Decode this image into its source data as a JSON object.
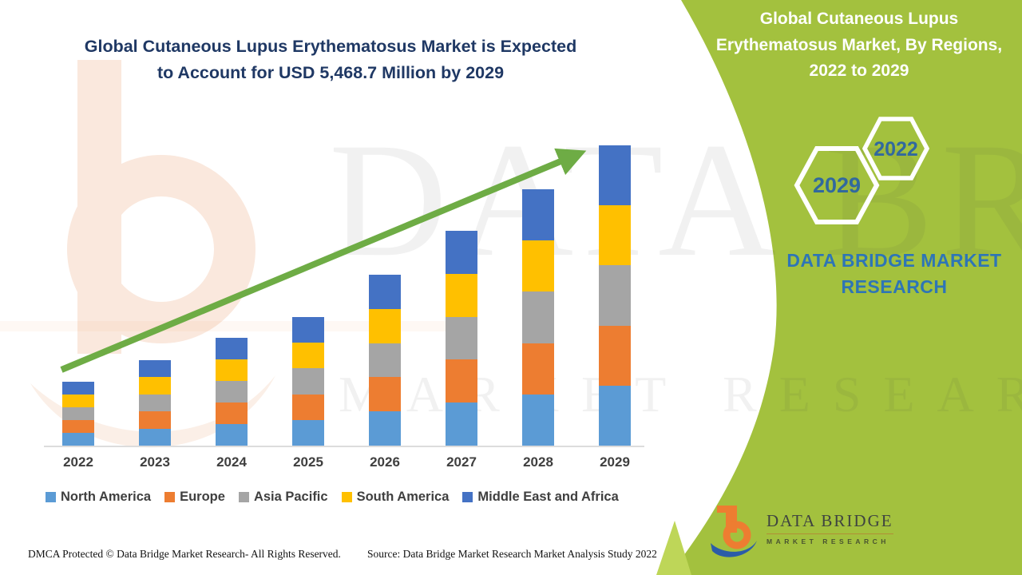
{
  "header": {
    "main_title": "Global Cutaneous Lupus Erythematosus Market is Expected\nto Account for USD 5,468.7 Million by 2029"
  },
  "side_panel": {
    "title": "Global Cutaneous Lupus\nErythematosus Market, By Regions,\n2022 to 2029",
    "hexagon_year_large": "2029",
    "hexagon_year_small": "2022",
    "brand_text": "DATA BRIDGE MARKET\nRESEARCH",
    "background_color": "#A3C13E",
    "accent_color": "#BED658"
  },
  "watermark": {
    "line1": "DATA BRIDGE",
    "line2": "MARKET RESEARCH"
  },
  "chart_data": {
    "type": "bar",
    "stacked": true,
    "title": "Global Cutaneous Lupus Erythematosus Market, By Regions, 2022 to 2029",
    "unit": "USD Million",
    "stated_value": "USD 5,468.7 Million by 2029",
    "categories": [
      "2022",
      "2023",
      "2024",
      "2025",
      "2026",
      "2027",
      "2028",
      "2029"
    ],
    "series": [
      {
        "name": "North America",
        "color": "#5B9BD5",
        "values": [
          232.7,
          311.2,
          392.6,
          468.4,
          622.4,
          782.4,
          933.7,
          1093.7
        ]
      },
      {
        "name": "Europe",
        "color": "#ED7D31",
        "values": [
          232.7,
          311.2,
          392.6,
          468.4,
          622.4,
          782.4,
          933.7,
          1093.7
        ]
      },
      {
        "name": "Asia Pacific",
        "color": "#A5A5A5",
        "values": [
          232.7,
          311.2,
          392.6,
          468.4,
          622.4,
          782.4,
          933.7,
          1093.7
        ]
      },
      {
        "name": "South America",
        "color": "#FFC000",
        "values": [
          232.7,
          311.2,
          392.6,
          468.4,
          622.4,
          782.4,
          933.7,
          1093.7
        ]
      },
      {
        "name": "Middle East and Africa",
        "color": "#4472C4",
        "values": [
          232.7,
          311.2,
          392.6,
          468.4,
          622.4,
          782.4,
          933.7,
          1093.7
        ]
      }
    ],
    "totals_estimated": [
      1163.5,
      1556,
      1963,
      2342,
      3112,
      3912,
      4668.5,
      5468.7
    ],
    "values_estimated_from_pixels": true,
    "y_axis_visible": false,
    "gridlines": false,
    "legend_position": "bottom",
    "trend_arrow": true,
    "trend_arrow_color": "#6EAC45",
    "axis_line_color": "#DCDCDC",
    "axis_text_color": "#3F3F3F"
  },
  "footer": {
    "dmca": "DMCA Protected © Data Bridge Market Research- All Rights Reserved.",
    "source": "Source: Data Bridge Market Research Market Analysis Study 2022"
  },
  "logo": {
    "wordmark": "DATA BRIDGE",
    "subtext": "MARKET RESEARCH"
  },
  "colors": {
    "title_navy": "#1F3864",
    "brand_blue": "#2E75B6",
    "hex_year_blue": "#31699E"
  }
}
